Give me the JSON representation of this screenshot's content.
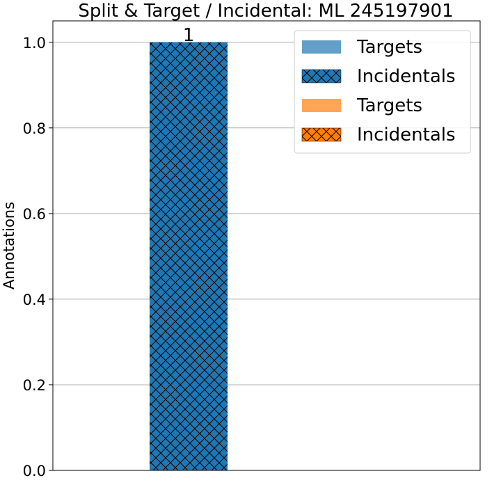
{
  "chart_data": {
    "type": "bar",
    "title": "Split & Target / Incidental: ML 245197901",
    "xlabel": "",
    "ylabel": "Annotations",
    "ylim": [
      0,
      1.05
    ],
    "yticks": [
      0.0,
      0.2,
      0.4,
      0.6,
      0.8,
      1.0
    ],
    "ytick_labels": [
      "0.0",
      "0.2",
      "0.4",
      "0.6",
      "0.8",
      "1.0"
    ],
    "grid": "horizontal",
    "legend_position": "top-right",
    "bars": [
      {
        "series": "Targets",
        "color": "#1f77b4",
        "hatch": "none",
        "value": 0,
        "slot": 0
      },
      {
        "series": "Incidentals",
        "color": "#1f77b4",
        "hatch": "crosshatch",
        "value": 1,
        "slot": 0,
        "label": "1"
      },
      {
        "series": "Targets",
        "color": "#ff7f0e",
        "hatch": "none",
        "value": 0,
        "slot": 1
      },
      {
        "series": "Incidentals",
        "color": "#ff7f0e",
        "hatch": "crosshatch",
        "value": 0,
        "slot": 1
      }
    ],
    "legend": [
      {
        "label": "Targets",
        "color": "#1f77b4",
        "hatch": "none",
        "alpha": 0.7
      },
      {
        "label": "Incidentals",
        "color": "#1f77b4",
        "hatch": "crosshatch",
        "alpha": 1
      },
      {
        "label": "Targets",
        "color": "#ff7f0e",
        "hatch": "none",
        "alpha": 0.7
      },
      {
        "label": "Incidentals",
        "color": "#ff7f0e",
        "hatch": "crosshatch",
        "alpha": 1
      }
    ]
  }
}
